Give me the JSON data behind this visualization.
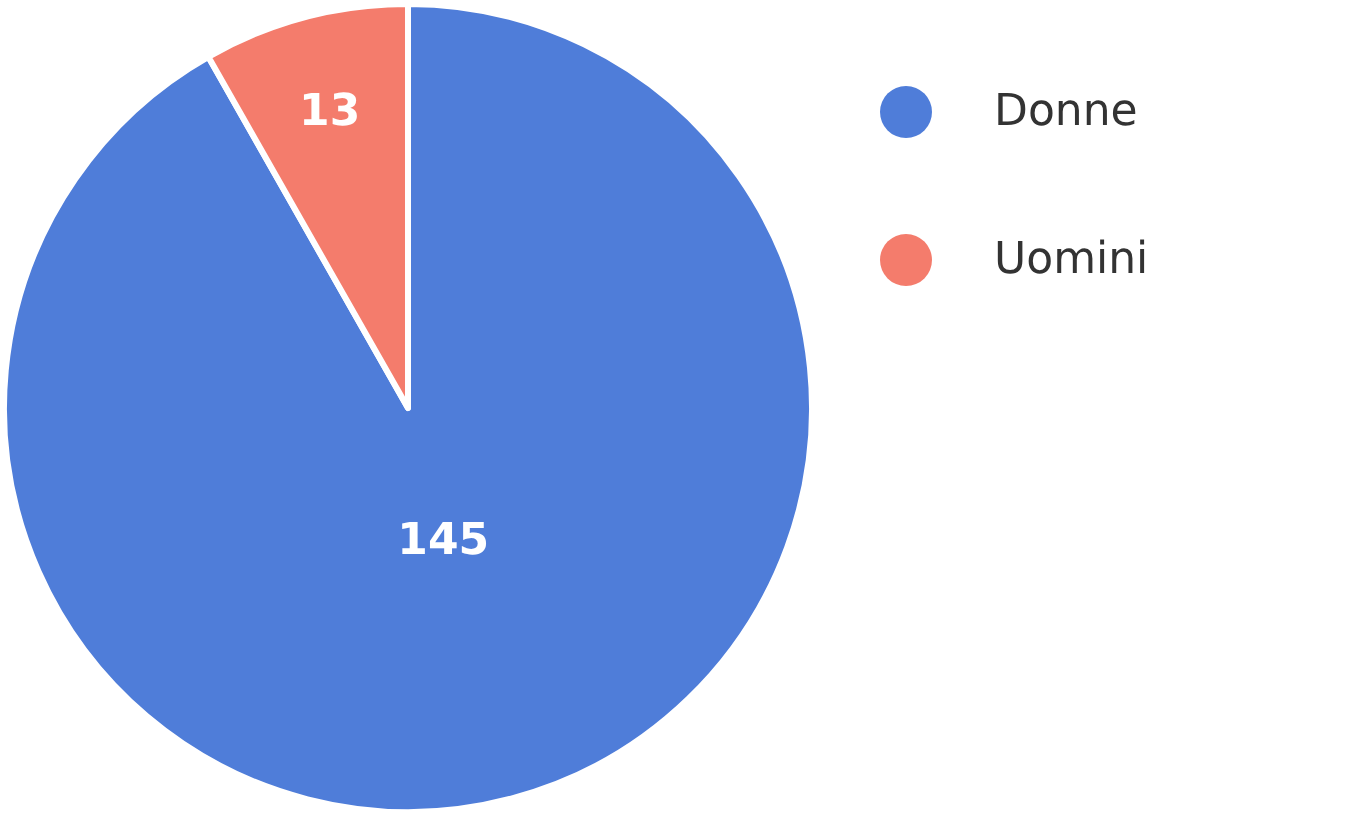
{
  "chart_data": {
    "type": "pie",
    "categories": [
      "Donne",
      "Uomini"
    ],
    "values": [
      145,
      13
    ],
    "colors": [
      "#4f7dd9",
      "#f47c6c"
    ],
    "data_labels": true,
    "legend": "top right"
  }
}
